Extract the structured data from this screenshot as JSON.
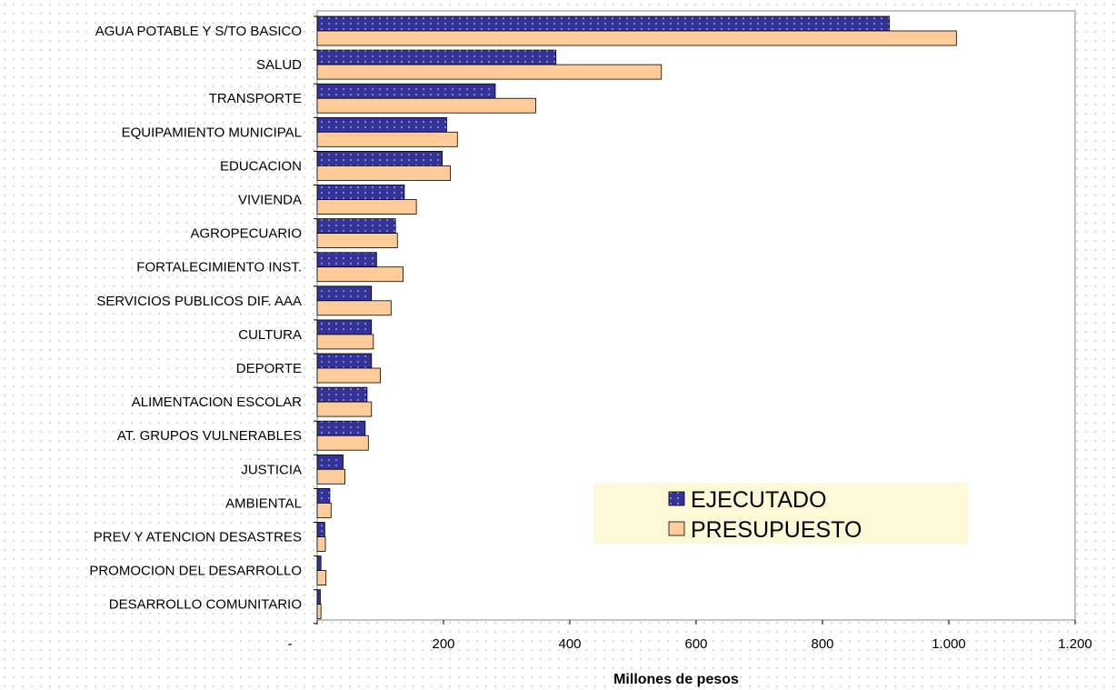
{
  "chart_data": {
    "type": "bar",
    "orientation": "horizontal",
    "categories": [
      "AGUA POTABLE Y S/TO BASICO",
      "SALUD",
      "TRANSPORTE",
      "EQUIPAMIENTO MUNICIPAL",
      "EDUCACION",
      "VIVIENDA",
      "AGROPECUARIO",
      "FORTALECIMIENTO INST.",
      "SERVICIOS PUBLICOS DIF. AAA",
      "CULTURA",
      "DEPORTE",
      "ALIMENTACION ESCOLAR",
      "AT. GRUPOS VULNERABLES",
      "JUSTICIA",
      "AMBIENTAL",
      "PREV Y ATENCION DESASTRES",
      "PROMOCION DEL DESARROLLO",
      "DESARROLLO COMUNITARIO"
    ],
    "series": [
      {
        "name": "EJECUTADO",
        "color": "#33339a",
        "values": [
          906,
          378,
          282,
          205,
          198,
          138,
          124,
          94,
          86,
          86,
          86,
          79,
          76,
          41,
          20,
          12,
          6,
          5
        ]
      },
      {
        "name": "PRESUPUESTO",
        "color": "#ffcc99",
        "values": [
          1012,
          545,
          346,
          222,
          211,
          157,
          127,
          136,
          117,
          89,
          100,
          86,
          81,
          44,
          22,
          13,
          14,
          6
        ]
      }
    ],
    "xlabel": "Millones de pesos",
    "xlim": [
      0,
      1200
    ],
    "xticks": [
      0,
      200,
      400,
      600,
      800,
      1000,
      1200
    ],
    "xtick_labels": [
      "-",
      "200",
      "400",
      "600",
      "800",
      "1.000",
      "1.200"
    ],
    "legend_position": "bottom-right",
    "grid": false
  }
}
